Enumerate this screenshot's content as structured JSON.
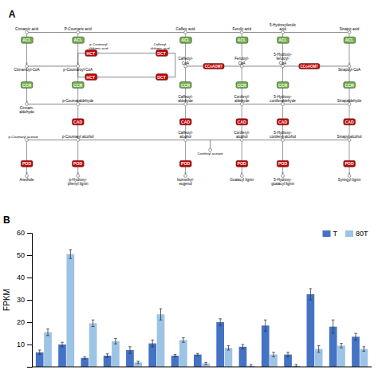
{
  "chart_data": [
    {
      "type": "diagram",
      "title": "A",
      "rows": [
        {
          "labels": [
            "Cinnamic acid",
            "P-Coumaric acid",
            "Caffeic acid",
            "Ferulic acid",
            "5-Hydroxyferulic\nacid",
            "Sinapic acid"
          ]
        },
        {
          "labels": [
            "Cinnamoyl-CoA",
            "p-Coumaroyl-CoA",
            "Caffeoyl-\nCoA",
            "Feruloyl-\nCoA",
            "5-Hydroxy-\nferuloyl-\nCoA",
            "Sinapoyl-CoA"
          ]
        },
        {
          "labels": [
            "Cinnam-\naldehyde",
            "p-Coumaraldehyde",
            "Caffeoyl-\naldehyde",
            "Coniferyl-\naldehyde",
            "5-Hydroxy-\nconiferaldehyde",
            "Sinapaldehyde"
          ]
        },
        {
          "labels": [
            null,
            "p-Coumaryl alcohol",
            "Caffeoyl-\nalcohol",
            "Coniferyl-\nalcohol",
            "5-Hydroxy-\nconiferyl alcohol",
            "Sinapyl alcohol"
          ]
        },
        {
          "labels": [
            "Anethole",
            "p-Hydroxy-\nphenyl lignin",
            "Isomethyl-\neugenol",
            "Guaiacyl lignin",
            "5-Hydroxy-\nguaiacyl lignin",
            "Syringyl lignin"
          ]
        }
      ],
      "steps": [
        {
          "labels": [
            "ACL",
            "ACL",
            "ACL",
            "ACL",
            "ACL",
            "ACL"
          ],
          "color": "#70AD47"
        },
        {
          "labels": [
            "CCR",
            "CCR",
            "CCR",
            "CCR",
            "CCR",
            "CCR"
          ],
          "color": "#70AD47"
        },
        {
          "labels": [
            null,
            "CAD",
            "CAD",
            "CAD",
            "CAD",
            "CAD"
          ],
          "color": "#C00000"
        },
        {
          "labels": [
            "POD",
            "POD",
            "POD",
            "POD",
            "POD",
            "POD"
          ],
          "color": "#C00000"
        }
      ],
      "branch": [
        {
          "name": "HCT",
          "color": "#C00000"
        },
        {
          "name": "DCT",
          "color": "#C00000"
        },
        {
          "name": "HCT",
          "color": "#C00000"
        },
        {
          "name": "DCT",
          "color": "#C00000"
        },
        {
          "name": "CCoAOMT",
          "color": "#C00000"
        },
        {
          "name": "CCoAOMT",
          "color": "#C00000"
        }
      ],
      "annotations": [
        "p-Coumaryl\nskikimic acid",
        "Caffeoyl\nskikimic acid",
        "p-Coumaryl acetate",
        "Coniferyl acetate"
      ]
    },
    {
      "type": "bar",
      "title": "B",
      "ylabel": "FPKM",
      "categories": [
        null,
        null,
        null,
        null,
        null,
        null,
        null,
        null,
        null,
        null,
        null,
        null,
        null,
        null,
        null
      ],
      "series": [
        {
          "name": "T",
          "color": "#4472C4",
          "values": [
            6.5,
            10.0,
            4.0,
            5.0,
            7.5,
            10.5,
            5.0,
            5.5,
            20.0,
            9.0,
            18.5,
            5.5,
            32.5,
            18.0,
            13.5
          ],
          "errors": [
            1.0,
            1.0,
            0.5,
            0.8,
            1.5,
            1.5,
            0.5,
            0.5,
            1.5,
            1.0,
            2.5,
            1.0,
            2.5,
            3.0,
            1.5
          ]
        },
        {
          "name": "80T",
          "color": "#9DC3E6",
          "values": [
            15.5,
            50.5,
            19.5,
            11.5,
            2.0,
            23.5,
            12.0,
            1.5,
            8.5,
            0.5,
            5.5,
            0.5,
            8.0,
            9.5,
            8.0
          ],
          "errors": [
            1.5,
            2.0,
            1.5,
            1.2,
            0.5,
            2.5,
            1.0,
            0.5,
            1.0,
            0.5,
            1.0,
            0.5,
            1.5,
            1.0,
            1.0
          ]
        }
      ],
      "ylim": [
        0,
        60
      ],
      "yticks": [
        10,
        20,
        30,
        40,
        50,
        60
      ],
      "legend": "upper right"
    }
  ]
}
